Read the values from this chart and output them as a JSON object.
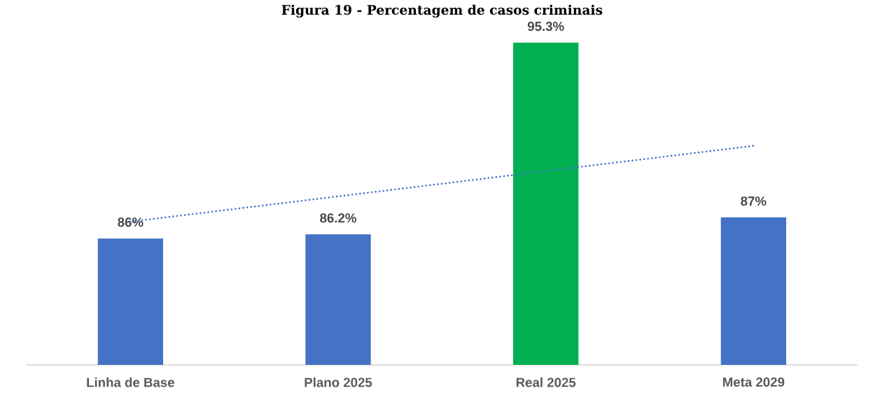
{
  "chart_data": {
    "type": "bar",
    "title": "Figura 19 - Percentagem de casos criminais",
    "categories": [
      "Linha de Base",
      "Plano 2025",
      "Real 2025",
      "Meta 2029"
    ],
    "series": [
      {
        "values": [
          86,
          86.2,
          95.3,
          87
        ],
        "colors": [
          "#4472c4",
          "#4472c4",
          "#00b050",
          "#4472c4"
        ],
        "value_labels": [
          "86%",
          "86.2%",
          "95.3%",
          "87%"
        ]
      },
      {
        "type": "line",
        "values": [
          86.8,
          88.0,
          89.2,
          90.4
        ],
        "color": "#4472c4",
        "line_style": "dotted"
      }
    ],
    "ylim": [
      80,
      95.3
    ],
    "grid": false
  }
}
